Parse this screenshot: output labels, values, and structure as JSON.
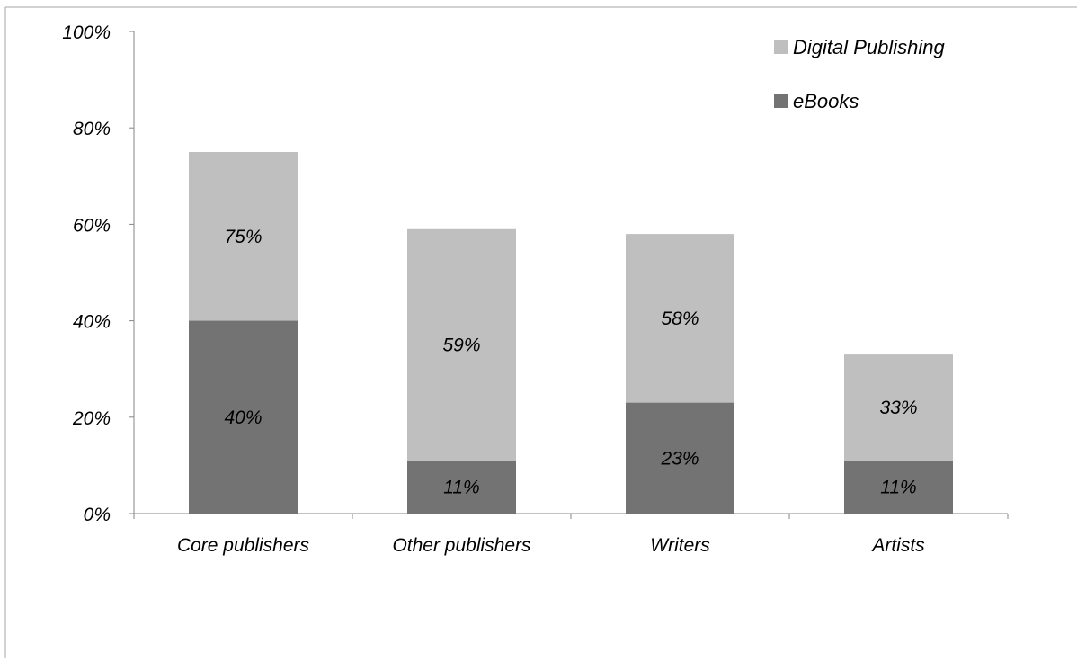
{
  "chart_data": {
    "type": "bar",
    "stacked": "overlay",
    "categories": [
      "Core publishers",
      "Other publishers",
      "Writers",
      "Artists"
    ],
    "series": [
      {
        "name": "Digital Publishing",
        "values": [
          75,
          59,
          58,
          33
        ],
        "labels": [
          "75%",
          "59%",
          "58%",
          "33%"
        ],
        "color": "#bfbfbf"
      },
      {
        "name": "eBooks",
        "values": [
          40,
          11,
          23,
          11
        ],
        "labels": [
          "40%",
          "11%",
          "23%",
          "11%"
        ],
        "color": "#737373"
      }
    ],
    "yticks": [
      "0%",
      "20%",
      "40%",
      "60%",
      "80%",
      "100%"
    ],
    "ylim": [
      0,
      100
    ],
    "grid": false,
    "legend": "top-right"
  }
}
